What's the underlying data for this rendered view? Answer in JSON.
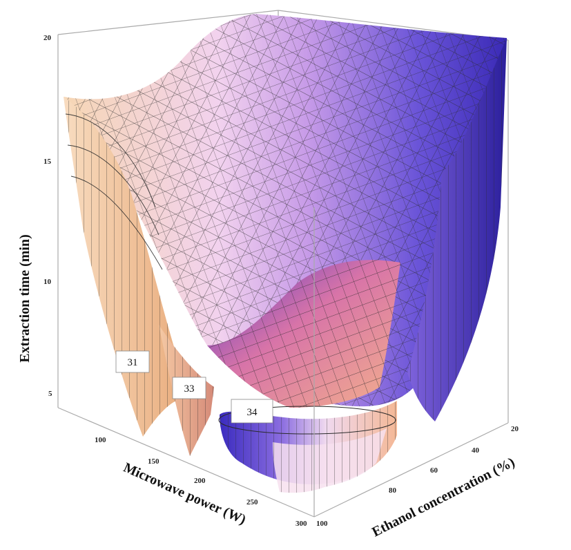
{
  "chart_data": {
    "type": "contour3d",
    "axes": {
      "x": {
        "label": "Microwave power (W)",
        "ticks": [
          "100",
          "150",
          "200",
          "250",
          "300"
        ]
      },
      "y": {
        "label": "Ethanol concentration (%)",
        "ticks": [
          "20",
          "40",
          "60",
          "80",
          "100"
        ]
      },
      "z": {
        "label": "Extraction time (min)",
        "ticks": [
          "5",
          "10",
          "15",
          "20"
        ]
      }
    },
    "contour_levels": [
      {
        "label": "31"
      },
      {
        "label": "33"
      },
      {
        "label": "34"
      }
    ],
    "colors": {
      "surface_warm": "#f4c79a",
      "surface_pink": "#e88aa6",
      "surface_violet": "#c49bea",
      "surface_blue": "#4a3cc8",
      "box": "#a9a9a9"
    }
  }
}
